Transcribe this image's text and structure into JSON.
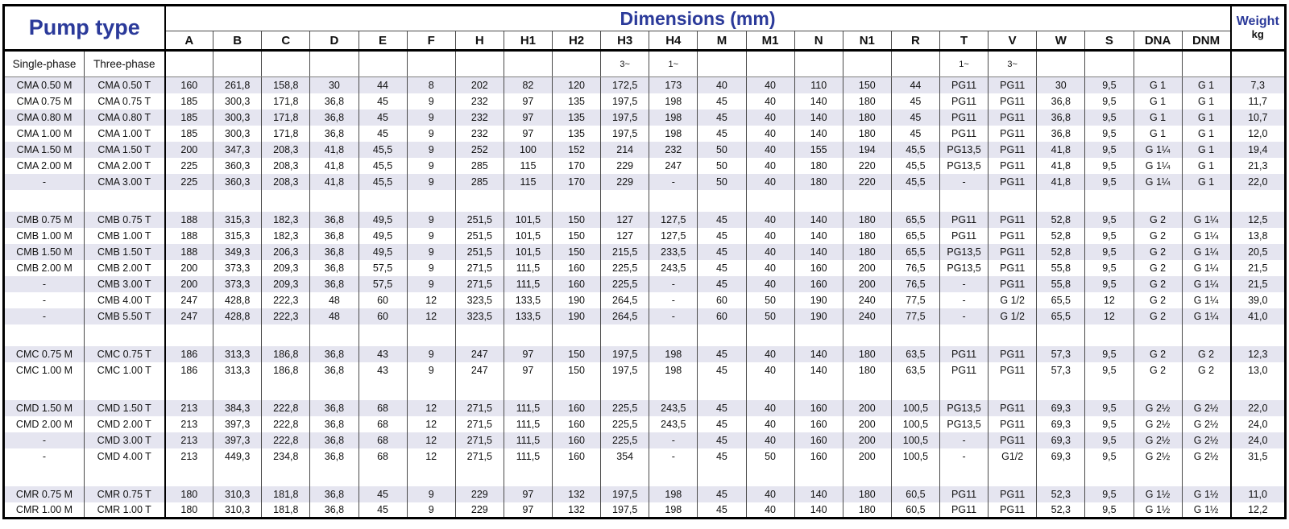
{
  "colors": {
    "header_blue": "#2b3a9a",
    "stripe": "#e5e5f0"
  },
  "header": {
    "pump_type_label": "Pump type",
    "dimensions_label": "Dimensions (mm)",
    "weight_label": "Weight",
    "weight_unit": "kg",
    "single_phase_label": "Single-phase",
    "three_phase_label": "Three-phase",
    "columns": [
      "A",
      "B",
      "C",
      "D",
      "E",
      "F",
      "H",
      "H1",
      "H2",
      "H3",
      "H4",
      "M",
      "M1",
      "N",
      "N1",
      "R",
      "T",
      "V",
      "W",
      "S",
      "DNA",
      "DNM"
    ],
    "subheader_cells": [
      "",
      "",
      "",
      "",
      "",
      "",
      "",
      "",
      "",
      "3~",
      "1~",
      "",
      "",
      "",
      "",
      "",
      "1~",
      "3~",
      "",
      "",
      "",
      ""
    ]
  },
  "groups": [
    {
      "rows": [
        {
          "single": "CMA 0.50 M",
          "three": "CMA 0.50 T",
          "values": [
            "160",
            "261,8",
            "158,8",
            "30",
            "44",
            "8",
            "202",
            "82",
            "120",
            "172,5",
            "173",
            "40",
            "40",
            "110",
            "150",
            "44",
            "PG11",
            "PG11",
            "30",
            "9,5",
            "G 1",
            "G 1"
          ],
          "weight": "7,3"
        },
        {
          "single": "CMA 0.75 M",
          "three": "CMA 0.75 T",
          "values": [
            "185",
            "300,3",
            "171,8",
            "36,8",
            "45",
            "9",
            "232",
            "97",
            "135",
            "197,5",
            "198",
            "45",
            "40",
            "140",
            "180",
            "45",
            "PG11",
            "PG11",
            "36,8",
            "9,5",
            "G 1",
            "G 1"
          ],
          "weight": "11,7"
        },
        {
          "single": "CMA 0.80 M",
          "three": "CMA 0.80 T",
          "values": [
            "185",
            "300,3",
            "171,8",
            "36,8",
            "45",
            "9",
            "232",
            "97",
            "135",
            "197,5",
            "198",
            "45",
            "40",
            "140",
            "180",
            "45",
            "PG11",
            "PG11",
            "36,8",
            "9,5",
            "G 1",
            "G 1"
          ],
          "weight": "10,7"
        },
        {
          "single": "CMA 1.00 M",
          "three": "CMA 1.00 T",
          "values": [
            "185",
            "300,3",
            "171,8",
            "36,8",
            "45",
            "9",
            "232",
            "97",
            "135",
            "197,5",
            "198",
            "45",
            "40",
            "140",
            "180",
            "45",
            "PG11",
            "PG11",
            "36,8",
            "9,5",
            "G 1",
            "G 1"
          ],
          "weight": "12,0"
        },
        {
          "single": "CMA 1.50 M",
          "three": "CMA 1.50 T",
          "values": [
            "200",
            "347,3",
            "208,3",
            "41,8",
            "45,5",
            "9",
            "252",
            "100",
            "152",
            "214",
            "232",
            "50",
            "40",
            "155",
            "194",
            "45,5",
            "PG13,5",
            "PG11",
            "41,8",
            "9,5",
            "G 1¼",
            "G 1"
          ],
          "weight": "19,4"
        },
        {
          "single": "CMA 2.00 M",
          "three": "CMA 2.00 T",
          "values": [
            "225",
            "360,3",
            "208,3",
            "41,8",
            "45,5",
            "9",
            "285",
            "115",
            "170",
            "229",
            "247",
            "50",
            "40",
            "180",
            "220",
            "45,5",
            "PG13,5",
            "PG11",
            "41,8",
            "9,5",
            "G 1¼",
            "G 1"
          ],
          "weight": "21,3"
        },
        {
          "single": "-",
          "three": "CMA 3.00 T",
          "values": [
            "225",
            "360,3",
            "208,3",
            "41,8",
            "45,5",
            "9",
            "285",
            "115",
            "170",
            "229",
            "-",
            "50",
            "40",
            "180",
            "220",
            "45,5",
            "-",
            "PG11",
            "41,8",
            "9,5",
            "G 1¼",
            "G 1"
          ],
          "weight": "22,0"
        }
      ]
    },
    {
      "rows": [
        {
          "single": "CMB 0.75 M",
          "three": "CMB 0.75 T",
          "values": [
            "188",
            "315,3",
            "182,3",
            "36,8",
            "49,5",
            "9",
            "251,5",
            "101,5",
            "150",
            "127",
            "127,5",
            "45",
            "40",
            "140",
            "180",
            "65,5",
            "PG11",
            "PG11",
            "52,8",
            "9,5",
            "G 2",
            "G 1¼"
          ],
          "weight": "12,5"
        },
        {
          "single": "CMB 1.00 M",
          "three": "CMB 1.00 T",
          "values": [
            "188",
            "315,3",
            "182,3",
            "36,8",
            "49,5",
            "9",
            "251,5",
            "101,5",
            "150",
            "127",
            "127,5",
            "45",
            "40",
            "140",
            "180",
            "65,5",
            "PG11",
            "PG11",
            "52,8",
            "9,5",
            "G 2",
            "G 1¼"
          ],
          "weight": "13,8"
        },
        {
          "single": "CMB 1.50 M",
          "three": "CMB 1.50 T",
          "values": [
            "188",
            "349,3",
            "206,3",
            "36,8",
            "49,5",
            "9",
            "251,5",
            "101,5",
            "150",
            "215,5",
            "233,5",
            "45",
            "40",
            "140",
            "180",
            "65,5",
            "PG13,5",
            "PG11",
            "52,8",
            "9,5",
            "G 2",
            "G 1¼"
          ],
          "weight": "20,5"
        },
        {
          "single": "CMB 2.00 M",
          "three": "CMB 2.00 T",
          "values": [
            "200",
            "373,3",
            "209,3",
            "36,8",
            "57,5",
            "9",
            "271,5",
            "111,5",
            "160",
            "225,5",
            "243,5",
            "45",
            "40",
            "160",
            "200",
            "76,5",
            "PG13,5",
            "PG11",
            "55,8",
            "9,5",
            "G 2",
            "G 1¼"
          ],
          "weight": "21,5"
        },
        {
          "single": "-",
          "three": "CMB 3.00 T",
          "values": [
            "200",
            "373,3",
            "209,3",
            "36,8",
            "57,5",
            "9",
            "271,5",
            "111,5",
            "160",
            "225,5",
            "-",
            "45",
            "40",
            "160",
            "200",
            "76,5",
            "-",
            "PG11",
            "55,8",
            "9,5",
            "G 2",
            "G 1¼"
          ],
          "weight": "21,5"
        },
        {
          "single": "-",
          "three": "CMB 4.00 T",
          "values": [
            "247",
            "428,8",
            "222,3",
            "48",
            "60",
            "12",
            "323,5",
            "133,5",
            "190",
            "264,5",
            "-",
            "60",
            "50",
            "190",
            "240",
            "77,5",
            "-",
            "G 1/2",
            "65,5",
            "12",
            "G 2",
            "G 1¼"
          ],
          "weight": "39,0"
        },
        {
          "single": "-",
          "three": "CMB 5.50 T",
          "values": [
            "247",
            "428,8",
            "222,3",
            "48",
            "60",
            "12",
            "323,5",
            "133,5",
            "190",
            "264,5",
            "-",
            "60",
            "50",
            "190",
            "240",
            "77,5",
            "-",
            "G 1/2",
            "65,5",
            "12",
            "G 2",
            "G 1¼"
          ],
          "weight": "41,0"
        }
      ]
    },
    {
      "rows": [
        {
          "single": "CMC 0.75 M",
          "three": "CMC 0.75 T",
          "values": [
            "186",
            "313,3",
            "186,8",
            "36,8",
            "43",
            "9",
            "247",
            "97",
            "150",
            "197,5",
            "198",
            "45",
            "40",
            "140",
            "180",
            "63,5",
            "PG11",
            "PG11",
            "57,3",
            "9,5",
            "G 2",
            "G 2"
          ],
          "weight": "12,3"
        },
        {
          "single": "CMC 1.00 M",
          "three": "CMC 1.00 T",
          "values": [
            "186",
            "313,3",
            "186,8",
            "36,8",
            "43",
            "9",
            "247",
            "97",
            "150",
            "197,5",
            "198",
            "45",
            "40",
            "140",
            "180",
            "63,5",
            "PG11",
            "PG11",
            "57,3",
            "9,5",
            "G 2",
            "G 2"
          ],
          "weight": "13,0"
        }
      ]
    },
    {
      "rows": [
        {
          "single": "CMD 1.50 M",
          "three": "CMD 1.50 T",
          "values": [
            "213",
            "384,3",
            "222,8",
            "36,8",
            "68",
            "12",
            "271,5",
            "111,5",
            "160",
            "225,5",
            "243,5",
            "45",
            "40",
            "160",
            "200",
            "100,5",
            "PG13,5",
            "PG11",
            "69,3",
            "9,5",
            "G 2½",
            "G 2½"
          ],
          "weight": "22,0"
        },
        {
          "single": "CMD 2.00 M",
          "three": "CMD 2.00 T",
          "values": [
            "213",
            "397,3",
            "222,8",
            "36,8",
            "68",
            "12",
            "271,5",
            "111,5",
            "160",
            "225,5",
            "243,5",
            "45",
            "40",
            "160",
            "200",
            "100,5",
            "PG13,5",
            "PG11",
            "69,3",
            "9,5",
            "G 2½",
            "G 2½"
          ],
          "weight": "24,0"
        },
        {
          "single": "-",
          "three": "CMD 3.00 T",
          "values": [
            "213",
            "397,3",
            "222,8",
            "36,8",
            "68",
            "12",
            "271,5",
            "111,5",
            "160",
            "225,5",
            "-",
            "45",
            "40",
            "160",
            "200",
            "100,5",
            "-",
            "PG11",
            "69,3",
            "9,5",
            "G 2½",
            "G 2½"
          ],
          "weight": "24,0"
        },
        {
          "single": "-",
          "three": "CMD 4.00 T",
          "values": [
            "213",
            "449,3",
            "234,8",
            "36,8",
            "68",
            "12",
            "271,5",
            "111,5",
            "160",
            "354",
            "-",
            "45",
            "50",
            "160",
            "200",
            "100,5",
            "-",
            "G1/2",
            "69,3",
            "9,5",
            "G 2½",
            "G 2½"
          ],
          "weight": "31,5"
        }
      ]
    },
    {
      "rows": [
        {
          "single": "CMR 0.75 M",
          "three": "CMR 0.75 T",
          "values": [
            "180",
            "310,3",
            "181,8",
            "36,8",
            "45",
            "9",
            "229",
            "97",
            "132",
            "197,5",
            "198",
            "45",
            "40",
            "140",
            "180",
            "60,5",
            "PG11",
            "PG11",
            "52,3",
            "9,5",
            "G 1½",
            "G 1½"
          ],
          "weight": "11,0"
        },
        {
          "single": "CMR 1.00 M",
          "three": "CMR 1.00 T",
          "values": [
            "180",
            "310,3",
            "181,8",
            "36,8",
            "45",
            "9",
            "229",
            "97",
            "132",
            "197,5",
            "198",
            "45",
            "40",
            "140",
            "180",
            "60,5",
            "PG11",
            "PG11",
            "52,3",
            "9,5",
            "G 1½",
            "G 1½"
          ],
          "weight": "12,2"
        }
      ]
    }
  ]
}
